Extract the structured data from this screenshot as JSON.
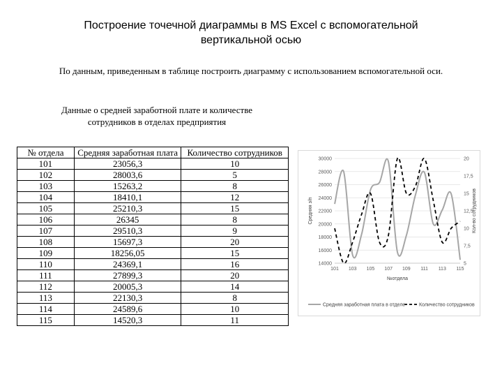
{
  "title": {
    "line1": "Построение точечной диаграммы в MS Excel с вспомогательной",
    "line2": "вертикальной осью"
  },
  "instruction": "По данным, приведенным в таблице построить диаграмму с использованием вспомогательной оси.",
  "caption": {
    "line1": "Данные о средней заработной плате и количестве",
    "line2": "сотрудников в отделах предприятия"
  },
  "table": {
    "headers": [
      "№ отдела",
      "Средняя заработная плата",
      "Количество сотрудников"
    ],
    "rows": [
      [
        "101",
        "23056,3",
        "10"
      ],
      [
        "102",
        "28003,6",
        "5"
      ],
      [
        "103",
        "15263,2",
        "8"
      ],
      [
        "104",
        "18410,1",
        "12"
      ],
      [
        "105",
        "25210,3",
        "15"
      ],
      [
        "106",
        "26345",
        "8"
      ],
      [
        "107",
        "29510,3",
        "9"
      ],
      [
        "108",
        "15697,3",
        "20"
      ],
      [
        "109",
        "18256,05",
        "15"
      ],
      [
        "110",
        "24369,1",
        "16"
      ],
      [
        "111",
        "27899,3",
        "20"
      ],
      [
        "112",
        "20005,3",
        "14"
      ],
      [
        "113",
        "22130,3",
        "8"
      ],
      [
        "114",
        "24589,6",
        "10"
      ],
      [
        "115",
        "14520,3",
        "11"
      ]
    ]
  },
  "chart_data": {
    "type": "line",
    "x": [
      101,
      102,
      103,
      104,
      105,
      106,
      107,
      108,
      109,
      110,
      111,
      112,
      113,
      114,
      115
    ],
    "x_ticks": [
      "101",
      "103",
      "105",
      "107",
      "109",
      "111",
      "113",
      "115"
    ],
    "xlabel": "№отдела",
    "ylabel": "Средняя з/п",
    "y2label": "Кол-во сотрудников",
    "ylim": [
      14000,
      30000
    ],
    "y_ticks": [
      "14000",
      "16000",
      "18000",
      "20000",
      "22000",
      "24000",
      "26000",
      "28000",
      "30000"
    ],
    "y2lim": [
      5,
      20
    ],
    "y2_ticks": [
      "5",
      "7,5",
      "10",
      "12,5",
      "15",
      "17,5",
      "20"
    ],
    "legend_position": "bottom",
    "series": [
      {
        "name": "Средняя заработная плата в отделе",
        "axis": "primary",
        "style": "solid",
        "color": "#a6a6a6",
        "values": [
          23056.3,
          28003.6,
          15263.2,
          18410.1,
          25210.3,
          26345,
          29510.3,
          15697.3,
          18256.05,
          24369.1,
          27899.3,
          20005.3,
          22130.3,
          24589.6,
          14520.3
        ]
      },
      {
        "name": "Количество сотрудников",
        "axis": "secondary",
        "style": "dashed",
        "color": "#000000",
        "values": [
          10,
          5,
          8,
          12,
          15,
          8,
          9,
          20,
          15,
          16,
          20,
          14,
          8,
          10,
          11
        ]
      }
    ]
  }
}
